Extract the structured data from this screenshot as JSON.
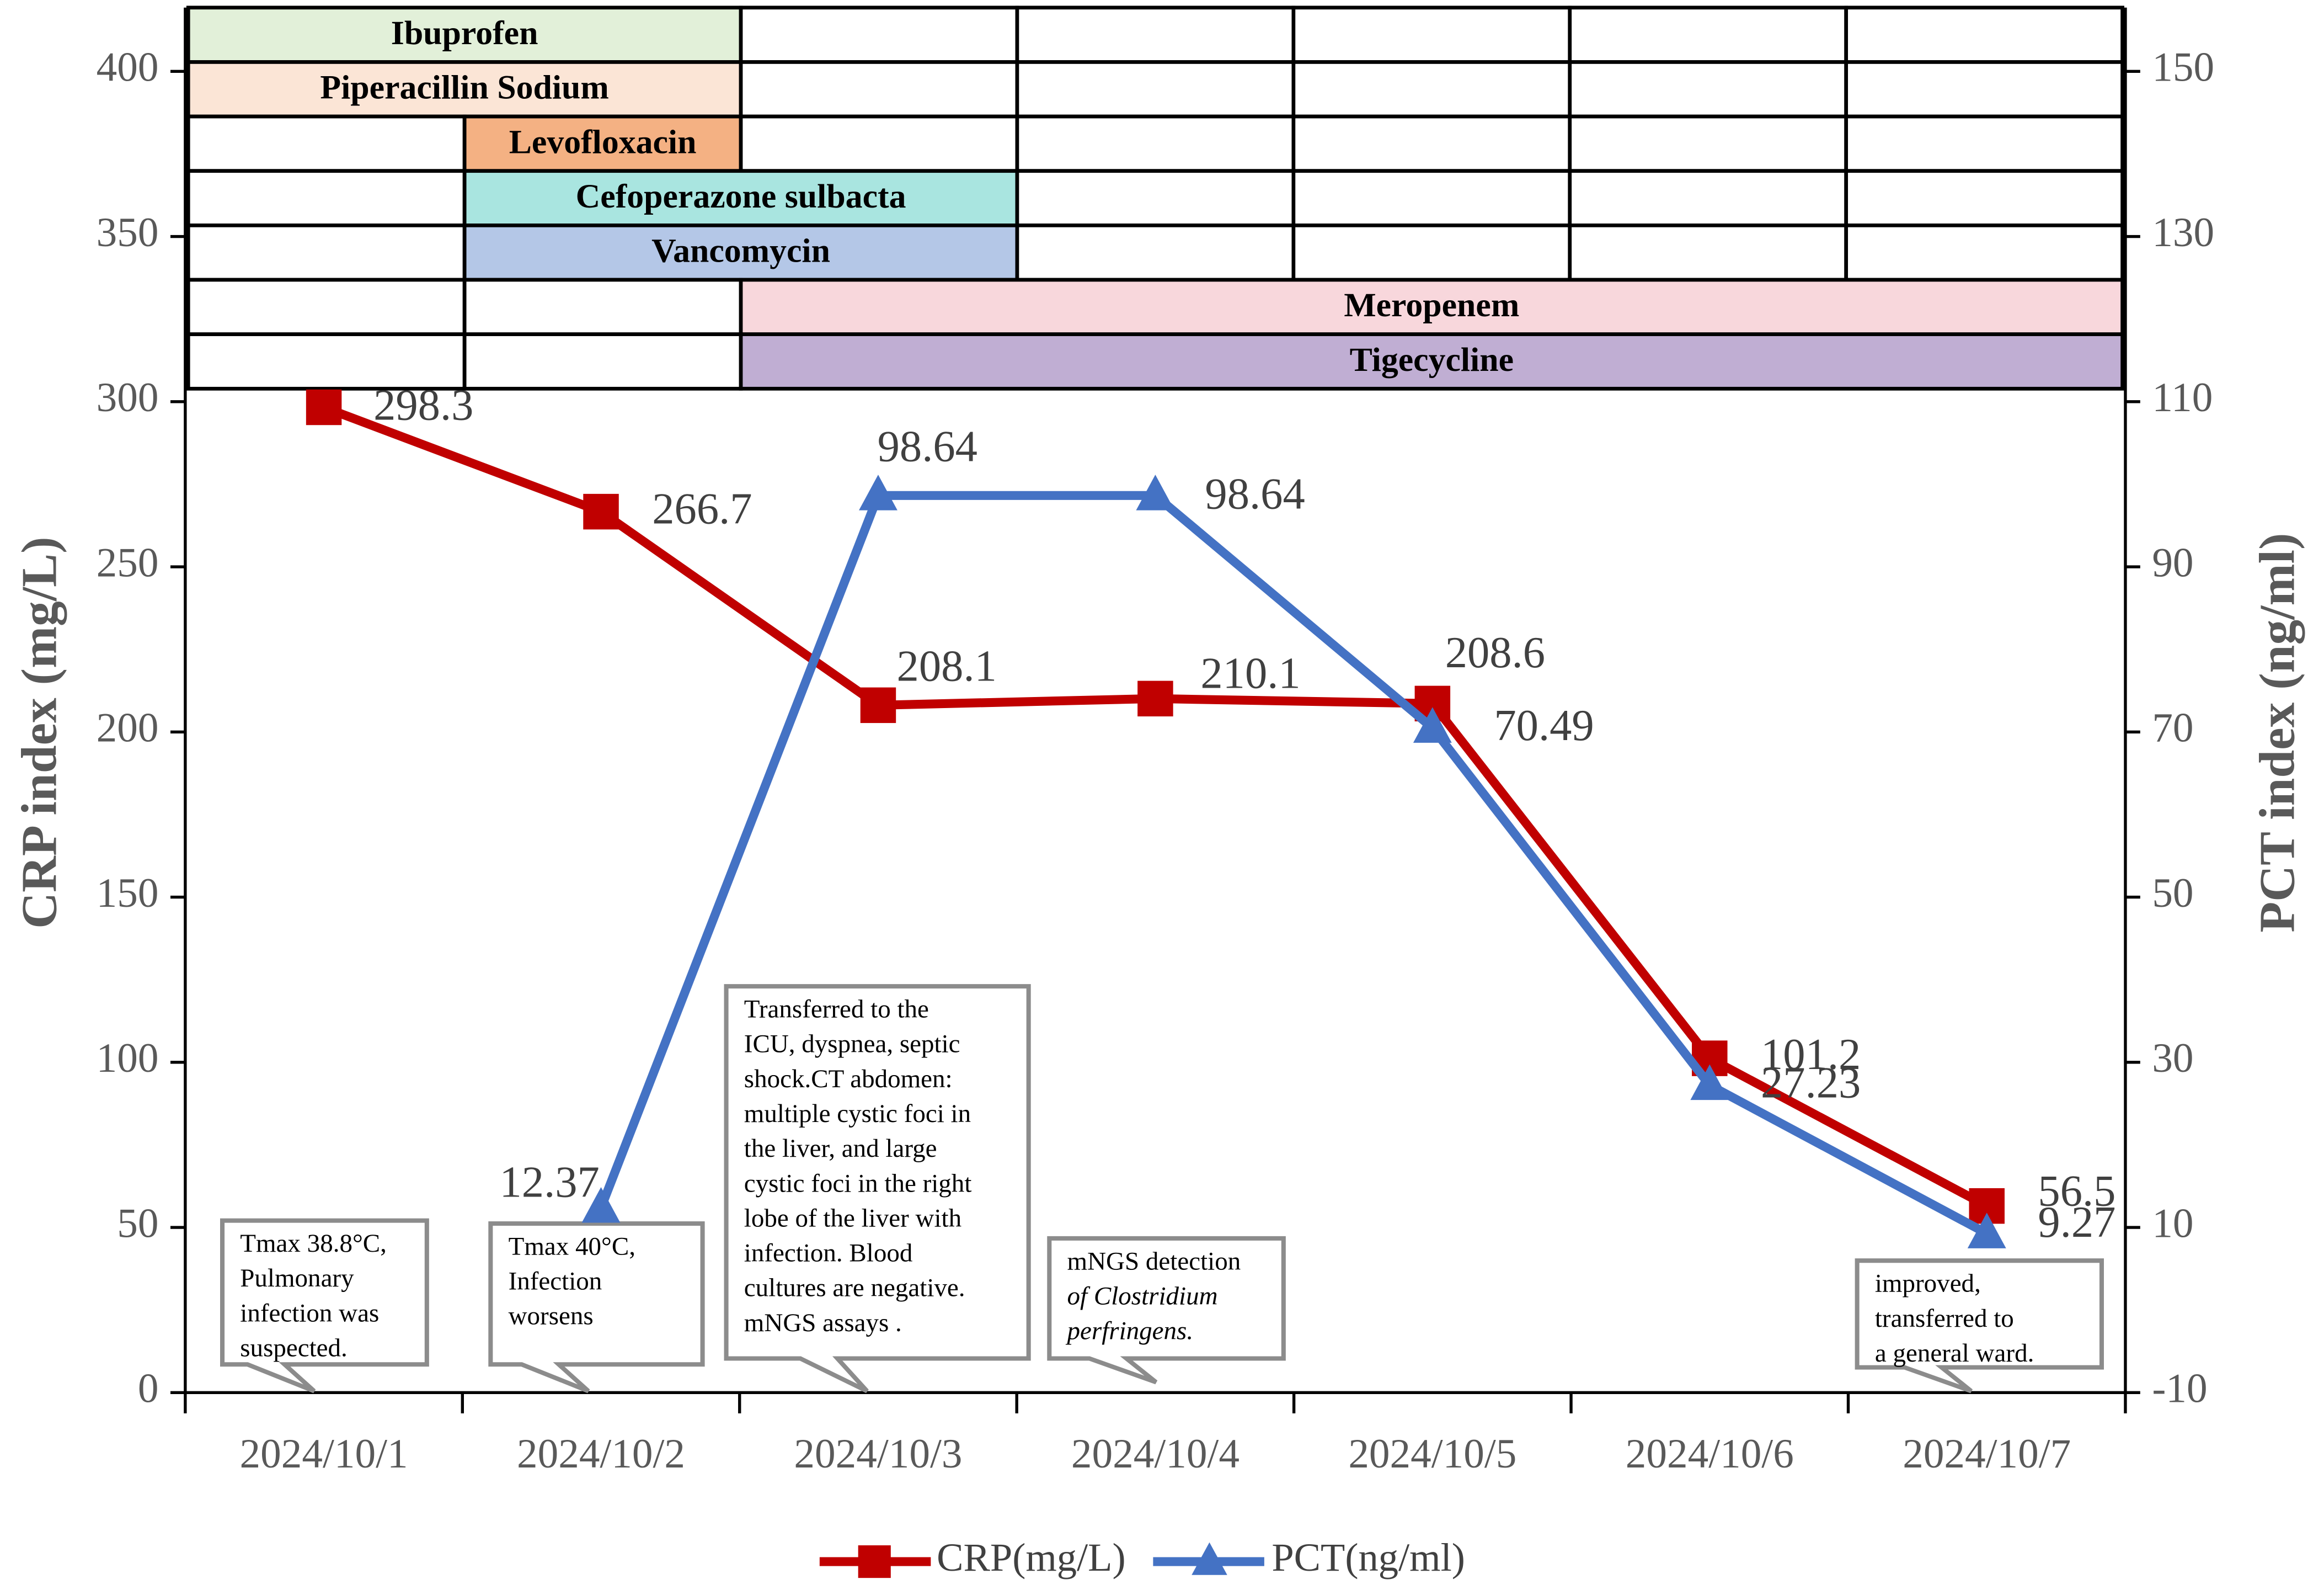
{
  "chart_data": {
    "type": "line",
    "categories": [
      "2024/10/1",
      "2024/10/2",
      "2024/10/3",
      "2024/10/4",
      "2024/10/5",
      "2024/10/6",
      "2024/10/7"
    ],
    "y_label": "CRP index (mg/L)",
    "y2_label": "PCT index (ng/ml)",
    "ylim": [
      0,
      400
    ],
    "yticks": [
      0,
      50,
      100,
      150,
      200,
      250,
      300,
      350,
      400
    ],
    "y2lim": [
      -10,
      150
    ],
    "y2ticks": [
      -10,
      10,
      30,
      50,
      70,
      90,
      110,
      130,
      150
    ],
    "series": [
      {
        "name": "CRP(mg/L)",
        "color": "#c00000",
        "marker": "square",
        "values": [
          298.3,
          266.7,
          208.1,
          210.1,
          208.6,
          101.2,
          56.5
        ]
      },
      {
        "name": "PCT(ng/ml)",
        "color": "#4472c4",
        "marker": "triangle",
        "axis": "y2",
        "values": [
          null,
          12.37,
          98.64,
          98.64,
          70.49,
          27.23,
          9.27
        ]
      }
    ],
    "legend": "bottom",
    "drugs": [
      {
        "name": "Ibuprofen",
        "color": "#e2f0d9",
        "start": "2024/10/1",
        "end": "2024/10/2"
      },
      {
        "name": "Piperacillin Sodium",
        "color": "#fbe5d6",
        "start": "2024/10/1",
        "end": "2024/10/2"
      },
      {
        "name": "Levofloxacin",
        "color": "#f4b183",
        "start": "2024/10/2",
        "end": "2024/10/2"
      },
      {
        "name": "Cefoperazone sulbacta",
        "color": "#a9e5e0",
        "start": "2024/10/2",
        "end": "2024/10/3"
      },
      {
        "name": "Vancomycin",
        "color": "#b4c7e7",
        "start": "2024/10/2",
        "end": "2024/10/3"
      },
      {
        "name": "Meropenem",
        "color": "#f8d7dc",
        "start": "2024/10/3",
        "end": "2024/10/7"
      },
      {
        "name": "Tigecycline",
        "color": "#c0aed3",
        "start": "2024/10/3",
        "end": "2024/10/7"
      }
    ],
    "annotations": [
      {
        "lines": [
          "Tmax 38.8°C,",
          "Pulmonary",
          "infection was",
          "suspected."
        ]
      },
      {
        "lines": [
          "Tmax 40°C,",
          "Infection",
          "worsens"
        ]
      },
      {
        "lines": [
          "Transferred to the",
          "ICU, dyspnea, septic",
          "shock.CT abdomen:",
          "multiple cystic foci in",
          "the liver, and large",
          "cystic foci in the right",
          "lobe of the liver with",
          "infection. Blood",
          "cultures are negative.",
          "mNGS assays ."
        ]
      },
      {
        "lines": [
          "mNGS detection",
          "of Clostridium",
          "perfringens."
        ]
      },
      {
        "lines": [
          "improved,",
          "transferred to",
          "a general ward."
        ]
      }
    ]
  }
}
